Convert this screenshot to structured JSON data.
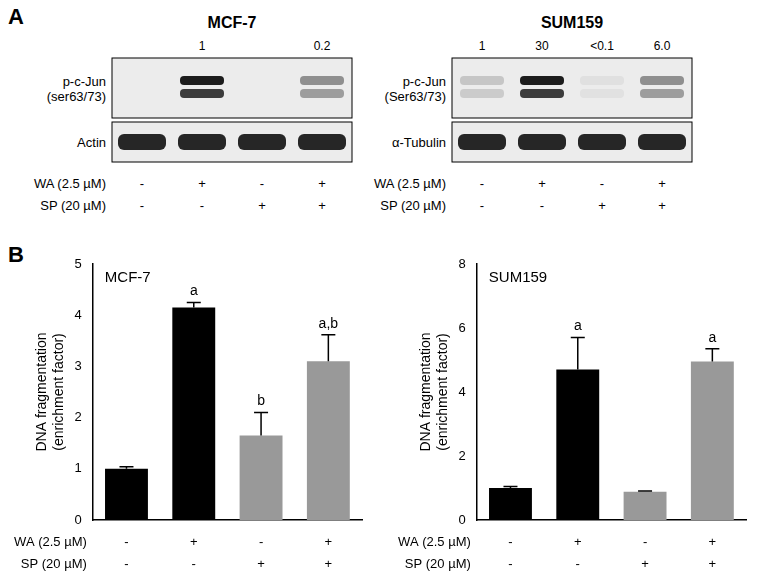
{
  "panel_labels": [
    "A",
    "B"
  ],
  "blots": [
    {
      "title": "MCF-7",
      "rows": [
        {
          "label": "p-c-Jun\n(ser63/73)",
          "quantification": [
            null,
            1,
            null,
            0.2
          ]
        },
        {
          "label": "Actin"
        }
      ],
      "treatments": [
        {
          "label": "WA (2.5 µM)",
          "signs": [
            "-",
            "+",
            "-",
            "+"
          ]
        },
        {
          "label": "SP (20 µM)",
          "signs": [
            "-",
            "-",
            "+",
            "+"
          ]
        }
      ]
    },
    {
      "title": "SUM159",
      "rows": [
        {
          "label": "p-c-Jun\n(Ser63/73)",
          "quantification": [
            1,
            30,
            {
              "value": 0.1,
              "label": "<0.1"
            },
            {
              "value": 6,
              "label": "6.0"
            }
          ]
        },
        {
          "label": "α-Tubulin"
        }
      ],
      "treatments": [
        {
          "label": "WA (2.5 µM)",
          "signs": [
            "-",
            "+",
            "-",
            "+"
          ]
        },
        {
          "label": "SP (20 µM)",
          "signs": [
            "-",
            "-",
            "+",
            "+"
          ]
        }
      ]
    }
  ],
  "chart_data": [
    {
      "type": "bar",
      "title": "MCF-7",
      "y_label": "DNA fragmentation\n(enrichment factor)",
      "categories": [
        null,
        null,
        null,
        null
      ],
      "values": [
        1.0,
        4.15,
        1.65,
        3.1
      ],
      "errors": [
        0.04,
        0.1,
        0.45,
        0.52
      ],
      "annotations": [
        null,
        "a",
        "b",
        "a,b"
      ],
      "colors": [
        "#000000",
        "#000000",
        "#999999",
        "#999999"
      ],
      "ylim": [
        0,
        5
      ],
      "yticks": [
        0,
        1,
        2,
        3,
        4,
        5
      ],
      "grid": false,
      "tick_labels": "y",
      "treatments": [
        {
          "label": "WA (2.5 µM)",
          "signs": [
            "-",
            "+",
            "-",
            "+"
          ]
        },
        {
          "label": "SP (20 µM)",
          "signs": [
            "-",
            "-",
            "+",
            "+"
          ]
        }
      ]
    },
    {
      "type": "bar",
      "title": "SUM159",
      "y_label": "DNA fragmentation\n(enrichment factor)",
      "categories": [
        null,
        null,
        null,
        null
      ],
      "values": [
        1.0,
        4.7,
        0.88,
        4.95
      ],
      "errors": [
        0.05,
        1.0,
        0.03,
        0.4
      ],
      "annotations": [
        null,
        "a",
        null,
        "a"
      ],
      "colors": [
        "#000000",
        "#000000",
        "#999999",
        "#999999"
      ],
      "ylim": [
        0,
        8
      ],
      "yticks": [
        0,
        2,
        4,
        6,
        8
      ],
      "grid": false,
      "tick_labels": "y",
      "treatments": [
        {
          "label": "WA (2.5 µM)",
          "signs": [
            "-",
            "+",
            "-",
            "+"
          ]
        },
        {
          "label": "SP (20 µM)",
          "signs": [
            "-",
            "-",
            "+",
            "+"
          ]
        }
      ]
    }
  ]
}
